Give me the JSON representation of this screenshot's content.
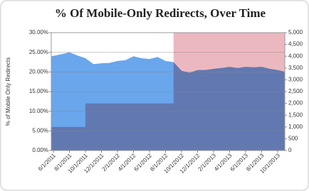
{
  "chart_data": {
    "type": "area",
    "title": "% Of Mobile-Only Redirects, Over Time",
    "y_label": "% of Mobile Only Redirects",
    "categories": [
      "6/1/2011",
      null,
      "8/1/2011",
      null,
      "10/1/2011",
      null,
      "12/1/2011",
      null,
      "2/1/2012",
      null,
      "4/1/2012",
      null,
      "6/1/2012",
      null,
      "8/1/2012",
      null,
      "10/1/2012",
      null,
      "12/1/2012",
      null,
      "2/1/2013",
      null,
      "4/1/2013",
      null,
      "6/1/2013",
      null,
      "8/1/2013",
      null,
      "10/1/2013",
      null
    ],
    "series": [
      {
        "color": "#ecb8c0",
        "axis": "y2",
        "step": true,
        "values": [
          1000,
          1000,
          1000,
          1000,
          2000,
          2000,
          2000,
          2000,
          2000,
          2000,
          2000,
          2000,
          2000,
          2000,
          2000,
          5000,
          5000,
          5000,
          5000,
          5000,
          5000,
          5000,
          5000,
          5000,
          5000,
          5000,
          5000,
          5000,
          5000,
          5000
        ]
      },
      {
        "color": "#6aa6ec",
        "values": [
          24,
          24.5,
          25,
          24.2,
          23.5,
          22,
          22.2,
          22.3,
          22.8,
          23,
          24,
          23.5,
          23.3,
          23.8,
          22.8,
          22.5,
          20.3,
          19.8,
          20.5,
          20.5,
          20.8,
          21,
          21.3,
          21,
          21.3,
          21.2,
          21.3,
          20.8,
          20.5,
          20
        ]
      }
    ],
    "ylim": [
      0,
      30
    ],
    "yticks": [
      {
        "value": 0,
        "label": "0.00%"
      },
      {
        "value": 5,
        "label": "5.00%"
      },
      {
        "value": 10,
        "label": "10.00%"
      },
      {
        "value": 15,
        "label": "15.00%"
      },
      {
        "value": 20,
        "label": "20.00%"
      },
      {
        "value": 25,
        "label": "25.00%"
      },
      {
        "value": 30,
        "label": "30.00%"
      }
    ],
    "y2lim": [
      0,
      5000
    ],
    "y2ticks": [
      0,
      500,
      {
        "value": 1000,
        "label": "1,000"
      },
      {
        "value": 1500,
        "label": "1,500"
      },
      {
        "value": 2000,
        "label": "2,000"
      },
      {
        "value": 2500,
        "label": "2,500"
      },
      {
        "value": 3000,
        "label": "3,000"
      },
      {
        "value": 3500,
        "label": "3,500"
      },
      {
        "value": 4000,
        "label": "4,000"
      },
      {
        "value": 4500,
        "label": "4,500"
      },
      {
        "value": 5000,
        "label": "5,000"
      }
    ],
    "grid": true
  }
}
